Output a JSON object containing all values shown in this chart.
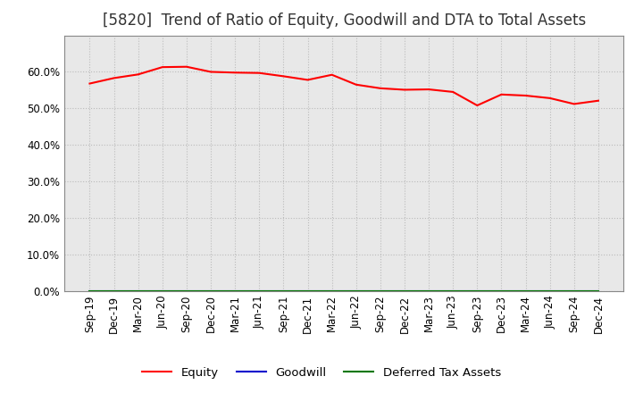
{
  "title": "[5820]  Trend of Ratio of Equity, Goodwill and DTA to Total Assets",
  "x_labels": [
    "Sep-19",
    "Dec-19",
    "Mar-20",
    "Jun-20",
    "Sep-20",
    "Dec-20",
    "Mar-21",
    "Jun-21",
    "Sep-21",
    "Dec-21",
    "Mar-22",
    "Jun-22",
    "Sep-22",
    "Dec-22",
    "Mar-23",
    "Jun-23",
    "Sep-23",
    "Dec-23",
    "Mar-24",
    "Jun-24",
    "Sep-24",
    "Dec-24"
  ],
  "equity": [
    0.568,
    0.583,
    0.593,
    0.613,
    0.614,
    0.6,
    0.598,
    0.597,
    0.588,
    0.578,
    0.592,
    0.565,
    0.555,
    0.551,
    0.552,
    0.545,
    0.508,
    0.538,
    0.535,
    0.528,
    0.512,
    0.521
  ],
  "goodwill": [
    0.0,
    0.0,
    0.0,
    0.0,
    0.0,
    0.0,
    0.0,
    0.0,
    0.0,
    0.0,
    0.0,
    0.0,
    0.0,
    0.0,
    0.0,
    0.0,
    0.0,
    0.0,
    0.0,
    0.0,
    0.0,
    0.0
  ],
  "dta": [
    0.0,
    0.0,
    0.0,
    0.0,
    0.0,
    0.0,
    0.0,
    0.0,
    0.0,
    0.0,
    0.0,
    0.0,
    0.0,
    0.0,
    0.0,
    0.0,
    0.0,
    0.0,
    0.0,
    0.0,
    0.0,
    0.0
  ],
  "equity_color": "#FF0000",
  "goodwill_color": "#0000CC",
  "dta_color": "#007700",
  "ylim": [
    0.0,
    0.7
  ],
  "yticks": [
    0.0,
    0.1,
    0.2,
    0.3,
    0.4,
    0.5,
    0.6
  ],
  "background_color": "#FFFFFF",
  "plot_bg_color": "#E8E8E8",
  "grid_color": "#BBBBBB",
  "title_fontsize": 12,
  "tick_fontsize": 8.5,
  "legend_fontsize": 9.5
}
